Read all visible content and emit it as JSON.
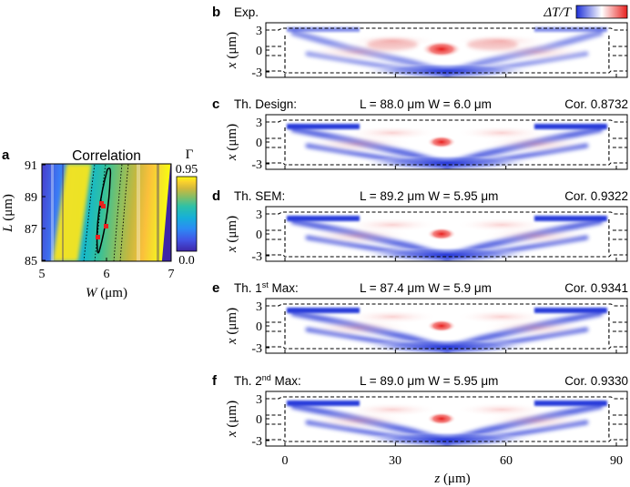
{
  "panel_a": {
    "letter": "a",
    "title": "Correlation",
    "colorbar_symbol": "Γ",
    "colorbar_max": "0.95",
    "colorbar_min": "0.0",
    "y_ticks": [
      "91",
      "89",
      "87",
      "85"
    ],
    "x_ticks": [
      "5",
      "6",
      "7"
    ],
    "y_label_italic": "L",
    "y_label_unit": " (μm)",
    "x_label_italic": "W",
    "x_label_unit": " (μm)"
  },
  "panels": [
    {
      "letter": "b",
      "left": "Exp.",
      "middle": "",
      "right": ""
    },
    {
      "letter": "c",
      "left": "Th. Design:",
      "middle": "L = 88.0 μm W = 6.0 μm",
      "right": "Cor. 0.8732"
    },
    {
      "letter": "d",
      "left": "Th. SEM:",
      "middle": "L = 89.2 μm W = 5.95 μm",
      "right": "Cor. 0.9322"
    },
    {
      "letter": "e",
      "left_pre": "Th. 1",
      "left_sup": "st",
      "left_post": " Max:",
      "middle": "L = 87.4 μm W = 5.9 μm",
      "right": "Cor. 0.9341"
    },
    {
      "letter": "f",
      "left_pre": "Th. 2",
      "left_sup": "nd",
      "left_post": " Max:",
      "middle": "L = 89.0 μm W = 5.95 μm",
      "right": "Cor. 0.9330"
    }
  ],
  "colorbar_b_label": "ΔT/T",
  "x_ticks_label": "x",
  "x_ticks_unit": " (μm)",
  "y_ticks_right": [
    "3",
    "0",
    "-3"
  ],
  "z_ticks": [
    "0",
    "30",
    "60",
    "90"
  ],
  "z_label_italic": "z",
  "z_label_unit": " (μm)",
  "colors": {
    "red": "#e8201e",
    "blue": "#1e30d8",
    "parula_low": "#3e26a8",
    "parula_high": "#f9fb0e"
  },
  "chart_data": [
    {
      "type": "heatmap",
      "title": "Correlation",
      "xlabel": "W (μm)",
      "ylabel": "L (μm)",
      "xlim": [
        5,
        7
      ],
      "ylim": [
        85,
        91
      ],
      "colorbar": {
        "label": "Γ",
        "min": 0.0,
        "max": 0.95
      },
      "markers": [
        {
          "name": "Th. Design",
          "W": 6.0,
          "L": 88.0
        },
        {
          "name": "Th. SEM",
          "W": 5.95,
          "L": 89.2
        },
        {
          "name": "Th. 1st Max",
          "W": 5.9,
          "L": 87.4
        },
        {
          "name": "Th. 2nd Max",
          "W": 5.95,
          "L": 89.0
        }
      ]
    },
    {
      "type": "heatmap",
      "panels": [
        "Exp.",
        "Th. Design",
        "Th. SEM",
        "Th. 1st Max",
        "Th. 2nd Max"
      ],
      "xlabel": "z (μm)",
      "ylabel": "x (μm)",
      "xlim": [
        -5,
        92
      ],
      "ylim": [
        -3.5,
        3.5
      ],
      "x_ticks": [
        0,
        30,
        60,
        90
      ],
      "y_ticks": [
        3,
        0,
        -3
      ],
      "colorbar": {
        "label": "ΔT/T",
        "colormap": "blue-white-red"
      },
      "correlations": [
        null,
        0.8732,
        0.9322,
        0.9341,
        0.933
      ]
    }
  ]
}
